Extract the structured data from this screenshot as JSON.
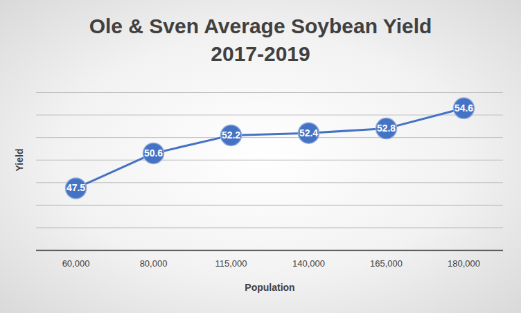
{
  "chart_data": {
    "type": "line",
    "title": "Ole & Sven Average Soybean Yield\n2017-2019",
    "x_label": "Population",
    "y_label": "Yield",
    "categories": [
      "60,000",
      "80,000",
      "115,000",
      "140,000",
      "165,000",
      "180,000"
    ],
    "values": [
      47.5,
      50.6,
      52.2,
      52.4,
      52.8,
      54.6
    ],
    "color": "#4472c4",
    "marker": "circle",
    "ylim": [
      42,
      56
    ],
    "yticks": [
      42,
      44,
      46,
      48,
      50,
      52,
      54,
      56
    ],
    "grid": true,
    "data_labels": true,
    "tick_labels": "x"
  }
}
